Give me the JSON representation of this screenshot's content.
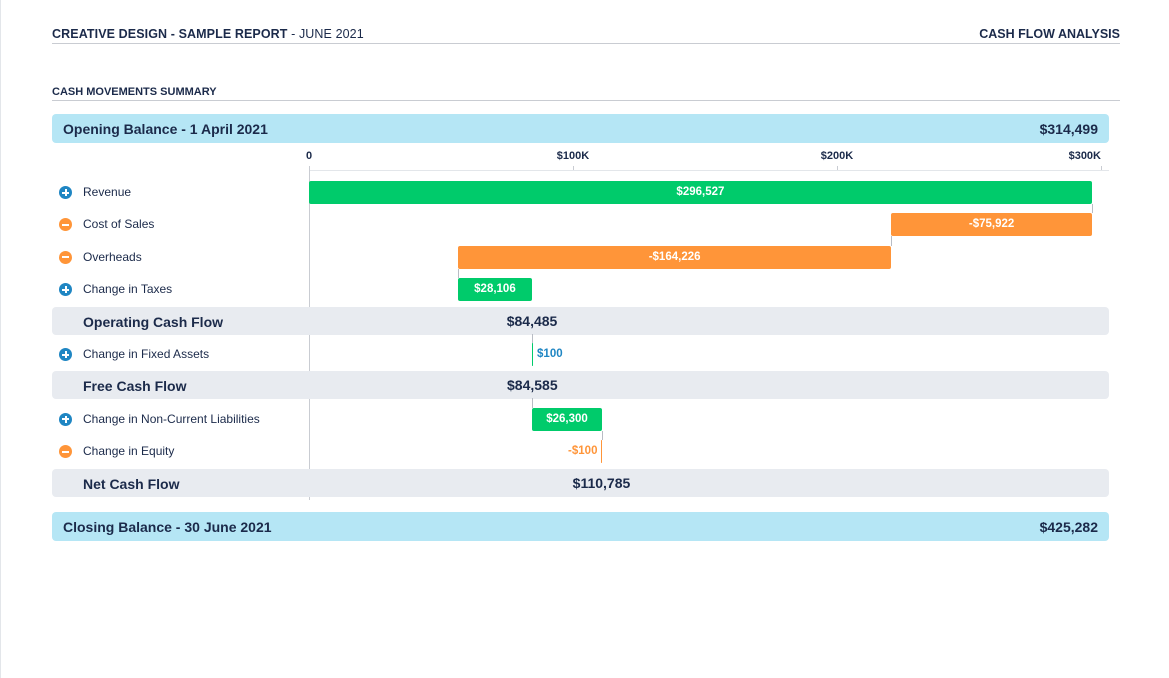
{
  "header": {
    "company": "CREATIVE DESIGN",
    "separator": " - ",
    "report_name": "SAMPLE REPORT",
    "date_suffix": " - JUNE 2021",
    "section": "CASH FLOW ANALYSIS"
  },
  "summary_title": "CASH MOVEMENTS SUMMARY",
  "opening": {
    "label": "Opening Balance - 1 April 2021",
    "value": "$314,499"
  },
  "closing": {
    "label": "Closing Balance - 30 June 2021",
    "value": "$425,282"
  },
  "colors": {
    "positive": "#00cb6b",
    "negative": "#ff9539",
    "plus_icon": "#1f86c3",
    "balance_bg": "#b5e6f5",
    "subtotal_bg": "#e8ebf0"
  },
  "chart_data": {
    "type": "bar",
    "subtype": "waterfall",
    "xlim": [
      0,
      300000
    ],
    "ticks": [
      {
        "value": 0,
        "label": "0"
      },
      {
        "value": 100000,
        "label": "$100K"
      },
      {
        "value": 200000,
        "label": "$200K"
      },
      {
        "value": 300000,
        "label": "$300K"
      }
    ],
    "rows": [
      {
        "kind": "item",
        "sign": "plus",
        "icon": "plus-icon",
        "label": "Revenue",
        "value": 296527,
        "start": 0,
        "end": 296527,
        "value_label": "$296,527"
      },
      {
        "kind": "item",
        "sign": "minus",
        "icon": "minus-icon",
        "label": "Cost of Sales",
        "value": -75922,
        "start": 296527,
        "end": 220605,
        "value_label": "-$75,922"
      },
      {
        "kind": "item",
        "sign": "minus",
        "icon": "minus-icon",
        "label": "Overheads",
        "value": -164226,
        "start": 220605,
        "end": 56379,
        "value_label": "-$164,226"
      },
      {
        "kind": "item",
        "sign": "plus",
        "icon": "plus-icon",
        "label": "Change in Taxes",
        "value": 28106,
        "start": 56379,
        "end": 84485,
        "value_label": "$28,106"
      },
      {
        "kind": "subtotal",
        "label": "Operating Cash Flow",
        "value": 84485,
        "value_label": "$84,485"
      },
      {
        "kind": "item",
        "sign": "plus",
        "icon": "plus-icon",
        "label": "Change in Fixed Assets",
        "value": 100,
        "start": 84485,
        "end": 84585,
        "value_label": "$100"
      },
      {
        "kind": "subtotal",
        "label": "Free Cash Flow",
        "value": 84585,
        "value_label": "$84,585"
      },
      {
        "kind": "item",
        "sign": "plus",
        "icon": "plus-icon",
        "label": "Change in Non-Current Liabilities",
        "value": 26300,
        "start": 84585,
        "end": 110885,
        "value_label": "$26,300"
      },
      {
        "kind": "item",
        "sign": "minus",
        "icon": "minus-icon",
        "label": "Change in Equity",
        "value": -100,
        "start": 110885,
        "end": 110785,
        "value_label": "-$100"
      },
      {
        "kind": "subtotal",
        "label": "Net Cash Flow",
        "value": 110785,
        "value_label": "$110,785"
      }
    ]
  }
}
